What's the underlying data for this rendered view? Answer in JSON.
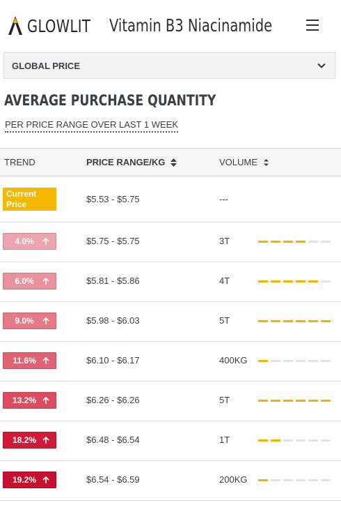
{
  "header": {
    "brand": "GLOWLIT",
    "product_title": "Vitamin B3 Niacinamide",
    "menu_icon": "hamburger-menu-icon"
  },
  "filter": {
    "selected": "GLOBAL PRICE",
    "icon": "chevron-down-icon"
  },
  "section": {
    "title": "AVERAGE PURCHASE QUANTITY",
    "subtitle": "PER PRICE RANGE OVER LAST 1 WEEK"
  },
  "table": {
    "columns": {
      "trend": "TREND",
      "price_range": "PRICE RANGE/KG",
      "volume": "VOLUME"
    },
    "current_row": {
      "badge": "Current Price",
      "price_range": "$5.53 - $5.75",
      "volume": "---"
    },
    "rows": [
      {
        "trend": "4.0%",
        "price_range": "$5.75 - $5.75",
        "volume": "3T",
        "level": 4,
        "color": "#eda5ad"
      },
      {
        "trend": "6.0%",
        "price_range": "$5.81 - $5.86",
        "volume": "4T",
        "level": 5,
        "color": "#e9929c"
      },
      {
        "trend": "9.0%",
        "price_range": "$5.98 - $6.03",
        "volume": "5T",
        "level": 6,
        "color": "#e57a87"
      },
      {
        "trend": "11.6%",
        "price_range": "$6.10 - $6.17",
        "volume": "400KG",
        "level": 1,
        "color": "#e06273"
      },
      {
        "trend": "13.2%",
        "price_range": "$6.26 - $6.26",
        "volume": "5T",
        "level": 6,
        "color": "#dc4d62"
      },
      {
        "trend": "18.2%",
        "price_range": "$6.48 - $6.54",
        "volume": "1T",
        "level": 2,
        "color": "#d01a38"
      },
      {
        "trend": "19.2%",
        "price_range": "$6.54 - $6.59",
        "volume": "200KG",
        "level": 1,
        "color": "#c8102e"
      }
    ],
    "volume_scale_max": 6
  },
  "colors": {
    "accent": "#f5b800",
    "header_bg": "#f5f5f5"
  }
}
